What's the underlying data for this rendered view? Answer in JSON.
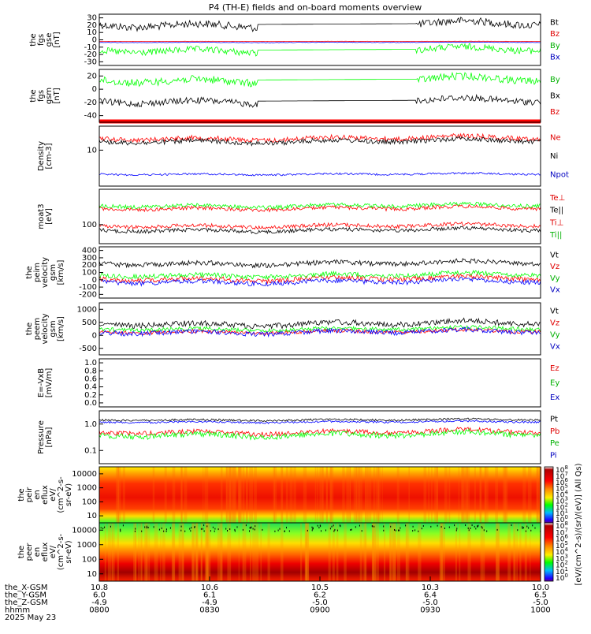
{
  "title": "P4 (TH-E) fields and on-board moments overview",
  "colors": {
    "black": "#000000",
    "red": "#ff0000",
    "green": "#00ff00",
    "blue": "#0000ff",
    "red_text": "#e00000",
    "green_text": "#00b000",
    "blue_text": "#0000c0"
  },
  "chart_data": [
    {
      "type": "line",
      "ylabel": [
        "the",
        "fgs",
        "gse",
        "[nT]"
      ],
      "ticks": [
        "30",
        "20",
        "10",
        "0",
        "-10",
        "-20",
        "-30"
      ],
      "series": [
        {
          "name": "Bt",
          "color": "black"
        },
        {
          "name": "Bz",
          "color": "red"
        },
        {
          "name": "By",
          "color": "green"
        },
        {
          "name": "Bx",
          "color": "blue"
        }
      ]
    },
    {
      "type": "line",
      "ylabel": [
        "the",
        "fgs",
        "gsm",
        "[nT]"
      ],
      "ticks": [
        "20",
        "0",
        "-20",
        "-40"
      ],
      "series": [
        {
          "name": "By",
          "color": "green"
        },
        {
          "name": "Bx",
          "color": "black"
        },
        {
          "name": "Bz",
          "color": "red"
        }
      ]
    },
    {
      "type": "line",
      "ylabel": [
        "Density",
        "[cm-3]"
      ],
      "ticks": [
        "10"
      ],
      "series": [
        {
          "name": "Ne",
          "color": "red"
        },
        {
          "name": "Ni",
          "color": "black"
        },
        {
          "name": "Npot",
          "color": "blue"
        }
      ]
    },
    {
      "type": "line",
      "ylabel": [
        "moat3",
        "[eV]"
      ],
      "ticks": [
        "100"
      ],
      "series": [
        {
          "name": "Te⊥",
          "color": "red"
        },
        {
          "name": "Te||",
          "color": "black"
        },
        {
          "name": "Ti⊥",
          "color": "red"
        },
        {
          "name": "Ti||",
          "color": "green"
        }
      ]
    },
    {
      "type": "line",
      "ylabel": [
        "the",
        "peim",
        "velocity",
        "gsm",
        "[km/s]"
      ],
      "ticks": [
        "400",
        "300",
        "200",
        "100",
        "0",
        "-100",
        "-200"
      ],
      "series": [
        {
          "name": "Vt",
          "color": "black"
        },
        {
          "name": "Vz",
          "color": "red"
        },
        {
          "name": "Vy",
          "color": "green"
        },
        {
          "name": "Vx",
          "color": "blue"
        }
      ]
    },
    {
      "type": "line",
      "ylabel": [
        "the",
        "peem",
        "velocity",
        "gsm",
        "[km/s]"
      ],
      "ticks": [
        "1000",
        "500",
        "0",
        "-500"
      ],
      "series": [
        {
          "name": "Vt",
          "color": "black"
        },
        {
          "name": "Vz",
          "color": "red"
        },
        {
          "name": "Vy",
          "color": "green"
        },
        {
          "name": "Vx",
          "color": "blue"
        }
      ]
    },
    {
      "type": "line",
      "ylabel": [
        "E=-VxB",
        "[mV/m]"
      ],
      "ticks": [
        "1.0",
        "0.8",
        "0.6",
        "0.4",
        "0.2",
        "0.0"
      ],
      "series": [
        {
          "name": "Ez",
          "color": "red"
        },
        {
          "name": "Ey",
          "color": "green"
        },
        {
          "name": "Ex",
          "color": "blue"
        }
      ]
    },
    {
      "type": "line",
      "ylabel": [
        "Pressure",
        "[nPa]"
      ],
      "ticks": [
        "1.0",
        "0.1"
      ],
      "series": [
        {
          "name": "Pt",
          "color": "black"
        },
        {
          "name": "Pb",
          "color": "red"
        },
        {
          "name": "Pe",
          "color": "green"
        },
        {
          "name": "Pi",
          "color": "blue"
        }
      ]
    },
    {
      "type": "heatmap",
      "ylabel": [
        "the",
        "peir",
        "en",
        "eflux",
        "eV/",
        "(cm^2-s-",
        "sr-eV)"
      ],
      "ticks": [
        "10000",
        "1000",
        "100",
        "10"
      ]
    },
    {
      "type": "heatmap",
      "ylabel": [
        "the",
        "peer",
        "en",
        "eflux",
        "eV/",
        "(cm^2-s-",
        "sr-eV)"
      ],
      "ticks": [
        "10000",
        "1000",
        "100",
        "10"
      ]
    }
  ],
  "colorbar": {
    "label": "[eV/(cm^2-s)/(sr)/(eV)] (All Qs)",
    "ticks_top": [
      "10^8",
      "10^7",
      "10^6",
      "10^5",
      "10^4",
      "10^3",
      "10^2",
      "10^1",
      "10^0"
    ],
    "ticks_bottom": [
      "10^8",
      "10^7",
      "10^6",
      "10^5",
      "10^4",
      "10^3",
      "10^2",
      "10^1",
      "10^0"
    ]
  },
  "xaxis": {
    "rows": [
      {
        "name": "the_X-GSM",
        "values": [
          "10.8",
          "10.6",
          "10.5",
          "10.3",
          "10.0"
        ]
      },
      {
        "name": "the_Y-GSM",
        "values": [
          "6.0",
          "6.1",
          "6.2",
          "6.4",
          "6.5"
        ]
      },
      {
        "name": "the_Z-GSM",
        "values": [
          "-4.9",
          "-4.9",
          "-5.0",
          "-5.0",
          "-5.0"
        ]
      },
      {
        "name": "hhmm",
        "values": [
          "0800",
          "0830",
          "0900",
          "0930",
          "1000"
        ]
      }
    ],
    "date": "2025 May 23"
  }
}
